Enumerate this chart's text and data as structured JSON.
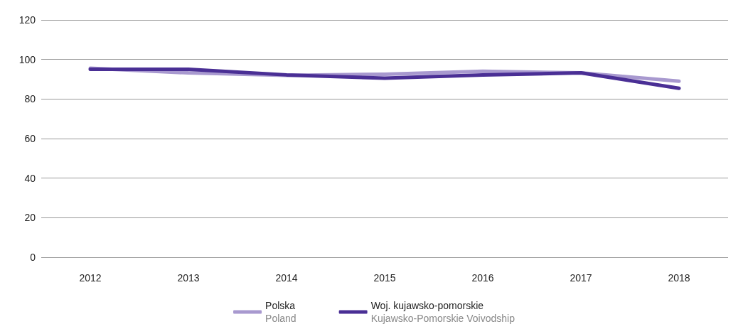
{
  "chart_data": {
    "type": "line",
    "categories": [
      "2012",
      "2013",
      "2014",
      "2015",
      "2016",
      "2017",
      "2018"
    ],
    "series": [
      {
        "name": "Polska\nPoland",
        "color": "#a899cf",
        "values": [
          95.6,
          93.2,
          92,
          92.5,
          94,
          93.2,
          89
        ]
      },
      {
        "name": "Woj. kujawsko-pomorskie\nKujawsko-Pomorskie Voivodship",
        "color": "#4a2f95",
        "values": [
          95,
          95,
          92.2,
          90.5,
          92.2,
          93.2,
          85.4
        ]
      }
    ],
    "ylim": [
      0,
      120
    ],
    "yticks": [
      0,
      20,
      40,
      60,
      80,
      100,
      120
    ],
    "grid": "y",
    "legend": "bottom",
    "marker": "none",
    "line_style": "solid"
  }
}
